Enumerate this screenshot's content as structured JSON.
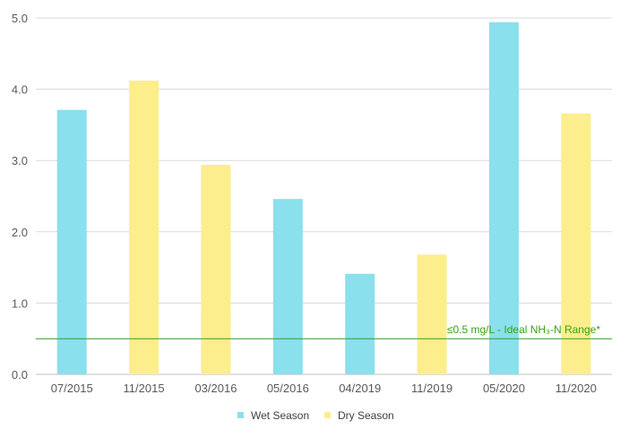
{
  "chart_data": {
    "type": "bar",
    "categories": [
      "07/2015",
      "11/2015",
      "03/2016",
      "05/2016",
      "04/2019",
      "11/2019",
      "05/2020",
      "11/2020"
    ],
    "values": [
      3.71,
      4.12,
      2.94,
      2.46,
      1.41,
      1.68,
      4.94,
      3.66
    ],
    "season": [
      "Wet Season",
      "Dry Season",
      "Dry Season",
      "Wet Season",
      "Wet Season",
      "Dry Season",
      "Wet Season",
      "Dry Season"
    ],
    "legend": [
      {
        "name": "Wet Season",
        "color": "#8ae0ec"
      },
      {
        "name": "Dry Season",
        "color": "#fcee8c"
      }
    ],
    "ylim": [
      0,
      5
    ],
    "yticks": [
      "0.0",
      "1.0",
      "2.0",
      "3.0",
      "4.0",
      "5.0"
    ],
    "grid": true,
    "legend_position": "bottom",
    "reference_line": {
      "value": 0.5,
      "label": "≤0.5 mg/L - Ideal NH₃-N Range*",
      "color": "#2ca02c"
    }
  }
}
